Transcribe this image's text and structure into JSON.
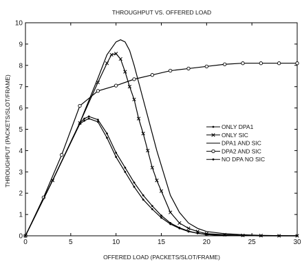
{
  "chart_data": {
    "type": "line",
    "title": "THROUGHPUT VS. OFFERED LOAD",
    "xlabel": "OFFERED LOAD (PACKETS/SLOT/FRAME)",
    "ylabel": "THROUGHPUT (PACKETS/SLOT/FRAME)",
    "xlim": [
      0,
      30
    ],
    "ylim": [
      0,
      10
    ],
    "xticks": [
      0,
      5,
      10,
      15,
      20,
      25,
      30
    ],
    "yticks": [
      0,
      1,
      2,
      3,
      4,
      5,
      6,
      7,
      8,
      9,
      10
    ],
    "grid": false,
    "legend_position": "center-right",
    "series": [
      {
        "name": "ONLY DPA1",
        "marker": "dot",
        "x": [
          0,
          3,
          6,
          6.5,
          7,
          8,
          9,
          10,
          11,
          12,
          13,
          14,
          15,
          16,
          17,
          18,
          19,
          20,
          21,
          22,
          24,
          26,
          28,
          30
        ],
        "y": [
          0,
          2.6,
          5.25,
          5.4,
          5.5,
          5.35,
          4.6,
          3.7,
          3.0,
          2.3,
          1.7,
          1.25,
          0.85,
          0.55,
          0.35,
          0.2,
          0.12,
          0.06,
          0.03,
          0.02,
          0.01,
          0,
          0,
          0
        ]
      },
      {
        "name": "ONLY SIC",
        "marker": "x",
        "x": [
          0,
          3,
          6,
          8,
          9,
          9.5,
          10,
          10.5,
          11,
          11.5,
          12,
          12.5,
          13,
          13.5,
          14,
          14.5,
          15,
          16,
          17,
          18,
          19,
          20,
          22,
          24,
          26,
          28,
          30
        ],
        "y": [
          0,
          2.6,
          5.3,
          7.2,
          8.1,
          8.5,
          8.55,
          8.3,
          7.7,
          7.0,
          6.4,
          5.5,
          4.8,
          4.0,
          3.2,
          2.6,
          2.1,
          1.1,
          0.6,
          0.35,
          0.2,
          0.1,
          0.05,
          0.02,
          0.01,
          0,
          0
        ]
      },
      {
        "name": "DPA1 AND SIC",
        "marker": "none",
        "x": [
          0,
          3,
          6,
          8,
          9,
          10,
          10.5,
          11,
          11.5,
          12,
          12.5,
          13,
          13.5,
          14,
          14.5,
          15,
          16,
          17,
          18,
          19,
          20,
          22,
          24,
          26,
          28,
          30
        ],
        "y": [
          0,
          2.6,
          5.3,
          7.4,
          8.5,
          9.1,
          9.2,
          9.1,
          8.7,
          8.0,
          7.2,
          6.4,
          5.6,
          4.8,
          4.0,
          3.3,
          1.9,
          1.1,
          0.6,
          0.35,
          0.2,
          0.1,
          0.05,
          0.02,
          0.01,
          0
        ]
      },
      {
        "name": "DPA2 AND SIC",
        "marker": "circle",
        "x": [
          0,
          2,
          4,
          6,
          8,
          10,
          12,
          14,
          16,
          18,
          20,
          22,
          24,
          26,
          28,
          30
        ],
        "y": [
          0,
          1.8,
          3.8,
          6.1,
          6.8,
          7.05,
          7.35,
          7.55,
          7.75,
          7.85,
          7.95,
          8.05,
          8.1,
          8.1,
          8.1,
          8.1
        ]
      },
      {
        "name": "NO DPA NO SIC",
        "marker": "dot",
        "x": [
          0,
          3,
          6,
          6.5,
          7,
          8,
          9,
          10,
          11,
          12,
          13,
          14,
          15,
          16,
          17,
          18,
          19,
          20,
          22,
          24,
          26,
          28,
          30
        ],
        "y": [
          0,
          2.6,
          5.3,
          5.5,
          5.6,
          5.45,
          4.8,
          3.9,
          3.2,
          2.5,
          1.9,
          1.4,
          0.95,
          0.6,
          0.38,
          0.22,
          0.12,
          0.06,
          0.03,
          0.01,
          0,
          0,
          0
        ]
      }
    ]
  }
}
